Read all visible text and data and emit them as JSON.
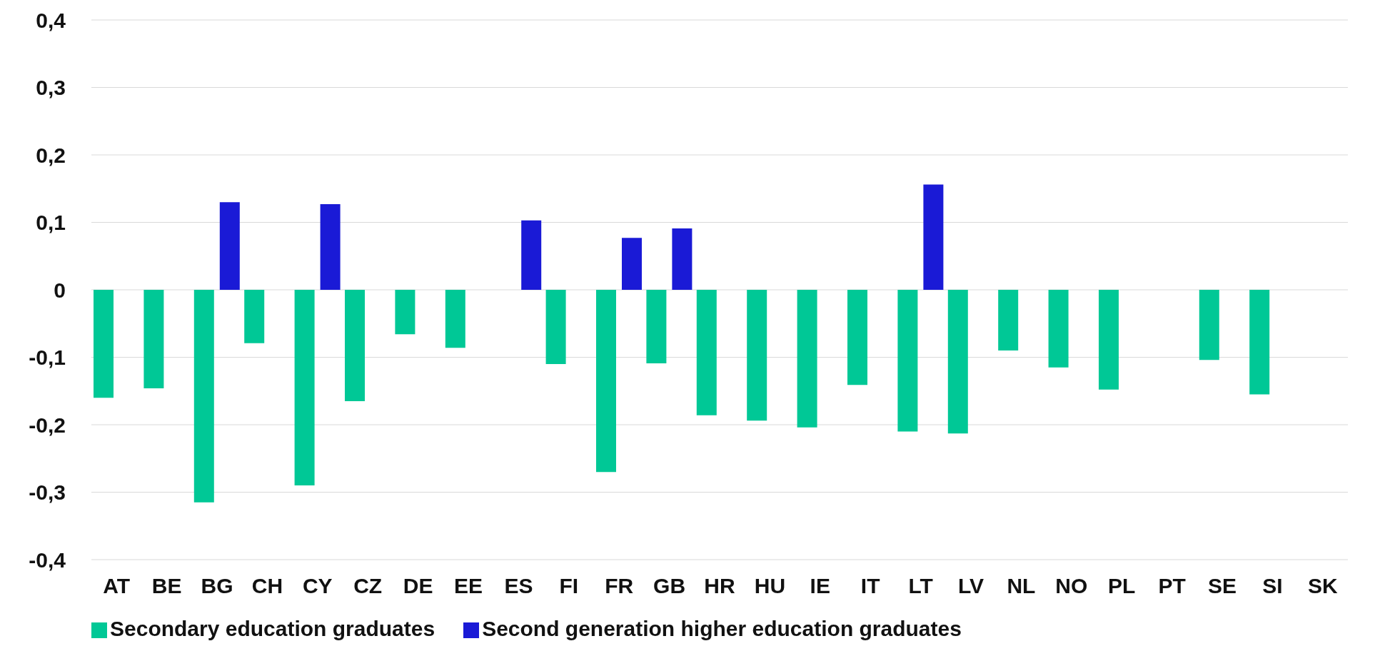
{
  "chart_data": {
    "type": "bar",
    "categories": [
      "AT",
      "BE",
      "BG",
      "CH",
      "CY",
      "CZ",
      "DE",
      "EE",
      "ES",
      "FI",
      "FR",
      "GB",
      "HR",
      "HU",
      "IE",
      "IT",
      "LT",
      "LV",
      "NL",
      "NO",
      "PL",
      "PT",
      "SE",
      "SI",
      "SK"
    ],
    "series": [
      {
        "name": "Secondary education graduates",
        "color": "#00c896",
        "values": [
          -0.16,
          -0.146,
          -0.315,
          -0.079,
          -0.29,
          -0.165,
          -0.066,
          -0.086,
          null,
          -0.11,
          -0.27,
          -0.109,
          -0.186,
          -0.194,
          -0.204,
          -0.141,
          -0.21,
          -0.213,
          -0.09,
          -0.115,
          -0.148,
          null,
          -0.104,
          -0.155,
          null
        ]
      },
      {
        "name": "Second generation higher education graduates",
        "color": "#1a1ad6",
        "values": [
          null,
          null,
          0.13,
          null,
          0.127,
          null,
          null,
          null,
          0.103,
          null,
          0.077,
          0.091,
          null,
          null,
          null,
          null,
          0.156,
          null,
          null,
          null,
          null,
          null,
          null,
          null,
          null
        ]
      }
    ],
    "ylim": [
      -0.4,
      0.4
    ],
    "yticks": [
      {
        "value": -0.4,
        "label": "-0,4"
      },
      {
        "value": -0.3,
        "label": "-0,3"
      },
      {
        "value": -0.2,
        "label": "-0,2"
      },
      {
        "value": -0.1,
        "label": "-0,1"
      },
      0,
      {
        "value": 0.1,
        "label": "0,1"
      },
      {
        "value": 0.2,
        "label": "0,2"
      },
      {
        "value": 0.3,
        "label": "0,3"
      },
      {
        "value": 0.4,
        "label": "0,4"
      }
    ],
    "grid": "y",
    "legend": "bottom left"
  }
}
